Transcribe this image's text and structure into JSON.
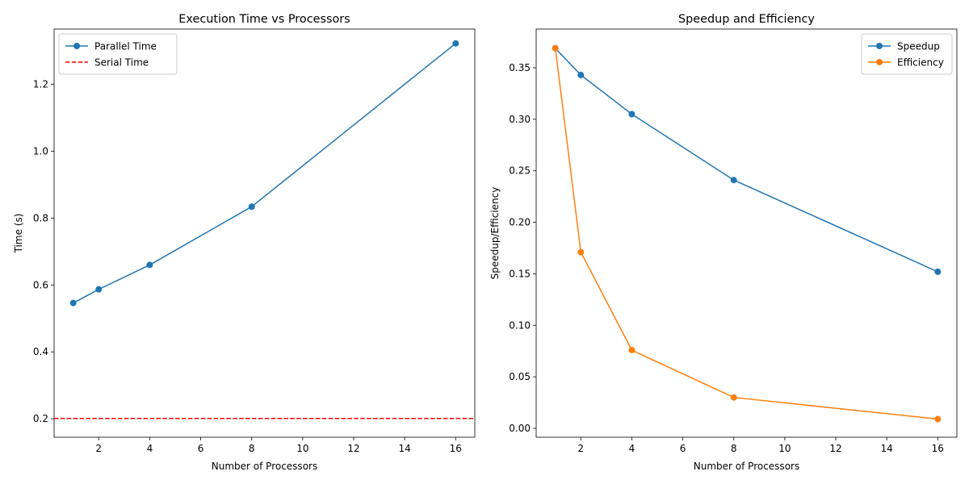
{
  "chart_data": [
    {
      "type": "line",
      "title": "Execution Time vs Processors",
      "xlabel": "Number of Processors",
      "ylabel": "Time (s)",
      "x": [
        1,
        2,
        4,
        8,
        16
      ],
      "xlim": [
        0.25,
        16.75
      ],
      "ylim": [
        0.145,
        1.365
      ],
      "xticks": [
        2,
        4,
        6,
        8,
        10,
        12,
        14,
        16
      ],
      "yticks": [
        0.2,
        0.4,
        0.6,
        0.8,
        1.0,
        1.2
      ],
      "ytick_decimals": 1,
      "legend_position": "upper-left",
      "grid": false,
      "series": [
        {
          "name": "Parallel Time",
          "values": [
            0.546,
            0.587,
            0.66,
            0.834,
            1.322
          ],
          "color": "#1f77b4",
          "style": "solid",
          "marker": "circle"
        }
      ],
      "hlines": [
        {
          "name": "Serial Time",
          "value": 0.201,
          "color": "#ff0000",
          "style": "dashed"
        }
      ]
    },
    {
      "type": "line",
      "title": "Speedup and Efficiency",
      "xlabel": "Number of Processors",
      "ylabel": "Speedup/Efficiency",
      "x": [
        1,
        2,
        4,
        8,
        16
      ],
      "xlim": [
        0.25,
        16.75
      ],
      "ylim": [
        -0.0086,
        0.3876
      ],
      "xticks": [
        2,
        4,
        6,
        8,
        10,
        12,
        14,
        16
      ],
      "yticks": [
        0.0,
        0.05,
        0.1,
        0.15,
        0.2,
        0.25,
        0.3,
        0.35
      ],
      "ytick_decimals": 2,
      "legend_position": "upper-right",
      "grid": false,
      "series": [
        {
          "name": "Speedup",
          "values": [
            0.369,
            0.343,
            0.305,
            0.241,
            0.152
          ],
          "color": "#1f77b4",
          "style": "solid",
          "marker": "circle"
        },
        {
          "name": "Efficiency",
          "values": [
            0.369,
            0.171,
            0.076,
            0.03,
            0.009
          ],
          "color": "#ff7f0e",
          "style": "solid",
          "marker": "circle"
        }
      ]
    }
  ]
}
